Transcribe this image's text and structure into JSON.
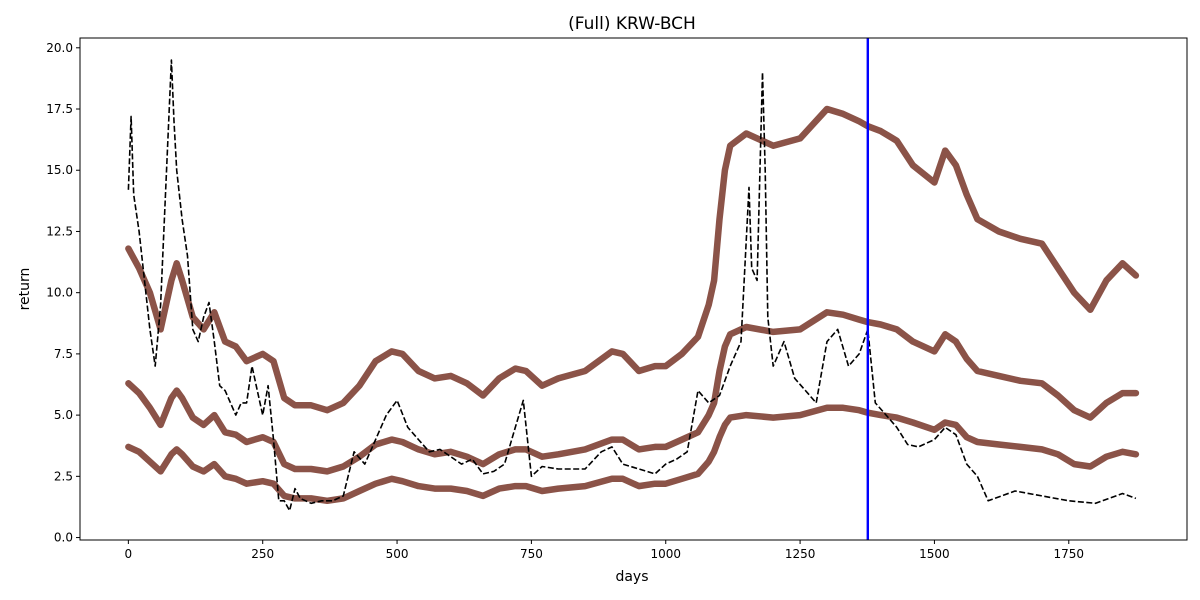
{
  "chart_data": {
    "type": "line",
    "title": "(Full) KRW-BCH",
    "xlabel": "days",
    "ylabel": "return",
    "xlim": [
      -90,
      1970
    ],
    "ylim": [
      -0.1,
      20.4
    ],
    "x_ticks": [
      0,
      250,
      500,
      750,
      1000,
      1250,
      1500,
      1750
    ],
    "y_ticks": [
      0.0,
      2.5,
      5.0,
      7.5,
      10.0,
      12.5,
      15.0,
      17.5,
      20.0
    ],
    "y_tick_labels": [
      "0.0",
      "2.5",
      "5.0",
      "7.5",
      "10.0",
      "12.5",
      "15.0",
      "17.5",
      "20.0"
    ],
    "grid": false,
    "legend": "none",
    "vline": {
      "x": 1376,
      "color": "#0000ff"
    },
    "colors": {
      "price": "#000000",
      "bands": "#8b5348",
      "vline": "#0000ff"
    },
    "series": [
      {
        "role": "price",
        "style": "dashed",
        "x": [
          0,
          5,
          10,
          20,
          30,
          40,
          50,
          60,
          70,
          80,
          85,
          90,
          100,
          110,
          120,
          130,
          140,
          150,
          160,
          170,
          180,
          190,
          200,
          210,
          220,
          230,
          240,
          250,
          260,
          270,
          280,
          290,
          300,
          310,
          320,
          340,
          360,
          380,
          400,
          420,
          440,
          460,
          480,
          500,
          520,
          540,
          560,
          580,
          600,
          620,
          640,
          660,
          680,
          700,
          720,
          735,
          750,
          770,
          800,
          820,
          850,
          880,
          900,
          920,
          950,
          980,
          1000,
          1020,
          1040,
          1060,
          1080,
          1100,
          1120,
          1140,
          1155,
          1160,
          1170,
          1180,
          1185,
          1190,
          1200,
          1220,
          1240,
          1260,
          1280,
          1300,
          1320,
          1340,
          1360,
          1376,
          1390,
          1410,
          1430,
          1450,
          1470,
          1500,
          1520,
          1540,
          1560,
          1580,
          1600,
          1650,
          1700,
          1750,
          1800,
          1850,
          1875
        ],
        "y": [
          14.2,
          17.2,
          14.0,
          12.5,
          10.5,
          8.5,
          7.0,
          9.5,
          14.5,
          19.5,
          17.0,
          15.0,
          13.0,
          11.5,
          8.5,
          8.0,
          9.0,
          9.6,
          8.0,
          6.2,
          6.0,
          5.5,
          5.0,
          5.5,
          5.5,
          7.0,
          6.0,
          5.0,
          6.2,
          4.0,
          1.5,
          1.5,
          1.1,
          2.0,
          1.6,
          1.4,
          1.5,
          1.5,
          1.7,
          3.5,
          3.0,
          4.0,
          5.0,
          5.6,
          4.5,
          4.0,
          3.5,
          3.6,
          3.3,
          3.0,
          3.2,
          2.6,
          2.7,
          3.0,
          4.5,
          5.6,
          2.5,
          2.9,
          2.8,
          2.8,
          2.8,
          3.5,
          3.7,
          3.0,
          2.8,
          2.6,
          3.0,
          3.2,
          3.5,
          6.0,
          5.5,
          5.8,
          7.0,
          8.0,
          14.3,
          11.0,
          10.5,
          19.0,
          15.0,
          9.0,
          7.0,
          8.0,
          6.5,
          6.0,
          5.5,
          8.0,
          8.5,
          7.0,
          7.5,
          8.5,
          5.5,
          5.0,
          4.5,
          3.8,
          3.7,
          4.0,
          4.5,
          4.2,
          3.0,
          2.5,
          1.5,
          1.9,
          1.7,
          1.5,
          1.4,
          1.8,
          1.6
        ]
      },
      {
        "role": "upper-band",
        "x": [
          0,
          20,
          40,
          60,
          80,
          90,
          100,
          120,
          140,
          160,
          180,
          200,
          220,
          250,
          270,
          290,
          310,
          340,
          370,
          400,
          430,
          460,
          490,
          510,
          540,
          570,
          600,
          630,
          660,
          690,
          720,
          740,
          770,
          800,
          850,
          900,
          920,
          950,
          980,
          1000,
          1030,
          1060,
          1080,
          1090,
          1100,
          1110,
          1120,
          1150,
          1200,
          1250,
          1300,
          1330,
          1360,
          1376,
          1400,
          1430,
          1460,
          1500,
          1520,
          1540,
          1560,
          1580,
          1620,
          1660,
          1700,
          1730,
          1760,
          1790,
          1820,
          1850,
          1875
        ],
        "y": [
          11.8,
          11.0,
          10.0,
          8.5,
          10.5,
          11.2,
          10.5,
          9.0,
          8.5,
          9.2,
          8.0,
          7.8,
          7.2,
          7.5,
          7.2,
          5.7,
          5.4,
          5.4,
          5.2,
          5.5,
          6.2,
          7.2,
          7.6,
          7.5,
          6.8,
          6.5,
          6.6,
          6.3,
          5.8,
          6.5,
          6.9,
          6.8,
          6.2,
          6.5,
          6.8,
          7.6,
          7.5,
          6.8,
          7.0,
          7.0,
          7.5,
          8.2,
          9.5,
          10.5,
          13.0,
          15.0,
          16.0,
          16.5,
          16.0,
          16.3,
          17.5,
          17.3,
          17.0,
          16.8,
          16.6,
          16.2,
          15.2,
          14.5,
          15.8,
          15.2,
          14.0,
          13.0,
          12.5,
          12.2,
          12.0,
          11.0,
          10.0,
          9.3,
          10.5,
          11.2,
          10.7
        ]
      },
      {
        "role": "middle-band",
        "x": [
          0,
          20,
          40,
          60,
          80,
          90,
          100,
          120,
          140,
          160,
          180,
          200,
          220,
          250,
          270,
          290,
          310,
          340,
          370,
          400,
          430,
          460,
          490,
          510,
          540,
          570,
          600,
          630,
          660,
          690,
          720,
          740,
          770,
          800,
          850,
          900,
          920,
          950,
          980,
          1000,
          1030,
          1060,
          1080,
          1090,
          1100,
          1110,
          1120,
          1150,
          1200,
          1250,
          1300,
          1330,
          1360,
          1376,
          1400,
          1430,
          1460,
          1500,
          1520,
          1540,
          1560,
          1580,
          1620,
          1660,
          1700,
          1730,
          1760,
          1790,
          1820,
          1850,
          1875
        ],
        "y": [
          6.3,
          5.9,
          5.3,
          4.6,
          5.7,
          6.0,
          5.7,
          4.9,
          4.6,
          5.0,
          4.3,
          4.2,
          3.9,
          4.1,
          3.9,
          3.0,
          2.8,
          2.8,
          2.7,
          2.9,
          3.3,
          3.8,
          4.0,
          3.9,
          3.6,
          3.4,
          3.5,
          3.3,
          3.0,
          3.4,
          3.6,
          3.6,
          3.3,
          3.4,
          3.6,
          4.0,
          4.0,
          3.6,
          3.7,
          3.7,
          4.0,
          4.3,
          5.0,
          5.5,
          6.8,
          7.8,
          8.3,
          8.6,
          8.4,
          8.5,
          9.2,
          9.1,
          8.9,
          8.8,
          8.7,
          8.5,
          8.0,
          7.6,
          8.3,
          8.0,
          7.3,
          6.8,
          6.6,
          6.4,
          6.3,
          5.8,
          5.2,
          4.9,
          5.5,
          5.9,
          5.9
        ]
      },
      {
        "role": "lower-band",
        "x": [
          0,
          20,
          40,
          60,
          80,
          90,
          100,
          120,
          140,
          160,
          180,
          200,
          220,
          250,
          270,
          290,
          310,
          340,
          370,
          400,
          430,
          460,
          490,
          510,
          540,
          570,
          600,
          630,
          660,
          690,
          720,
          740,
          770,
          800,
          850,
          900,
          920,
          950,
          980,
          1000,
          1030,
          1060,
          1080,
          1090,
          1100,
          1110,
          1120,
          1150,
          1200,
          1250,
          1300,
          1330,
          1360,
          1376,
          1400,
          1430,
          1460,
          1500,
          1520,
          1540,
          1560,
          1580,
          1620,
          1660,
          1700,
          1730,
          1760,
          1790,
          1820,
          1850,
          1875
        ],
        "y": [
          3.7,
          3.5,
          3.1,
          2.7,
          3.4,
          3.6,
          3.4,
          2.9,
          2.7,
          3.0,
          2.5,
          2.4,
          2.2,
          2.3,
          2.2,
          1.7,
          1.6,
          1.6,
          1.5,
          1.6,
          1.9,
          2.2,
          2.4,
          2.3,
          2.1,
          2.0,
          2.0,
          1.9,
          1.7,
          2.0,
          2.1,
          2.1,
          1.9,
          2.0,
          2.1,
          2.4,
          2.4,
          2.1,
          2.2,
          2.2,
          2.4,
          2.6,
          3.1,
          3.5,
          4.1,
          4.6,
          4.9,
          5.0,
          4.9,
          5.0,
          5.3,
          5.3,
          5.2,
          5.1,
          5.0,
          4.9,
          4.7,
          4.4,
          4.7,
          4.6,
          4.1,
          3.9,
          3.8,
          3.7,
          3.6,
          3.4,
          3.0,
          2.9,
          3.3,
          3.5,
          3.4
        ]
      }
    ]
  }
}
